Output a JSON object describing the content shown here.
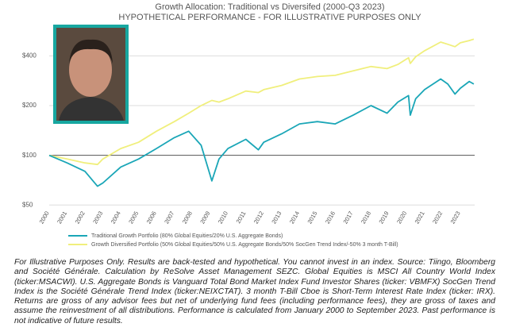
{
  "chart_data": {
    "type": "line",
    "title": "Growth Allocation: Traditional vs Diversifed (2000-Q3 2023)",
    "subtitle": "HYPOTHETICAL PERFORMANCE - FOR ILLUSTRATIVE PURPOSES ONLY",
    "x": [
      2000,
      2001,
      2002,
      2002.7,
      2003,
      2004,
      2005,
      2006,
      2007,
      2007.8,
      2008.5,
      2009.1,
      2009.5,
      2010,
      2011,
      2011.7,
      2012,
      2013,
      2014,
      2015,
      2016,
      2017,
      2018,
      2018.9,
      2019.5,
      2020.1,
      2020.2,
      2020.5,
      2021,
      2021.9,
      2022.3,
      2022.7,
      2023,
      2023.5,
      2023.75
    ],
    "series": [
      {
        "name": "Traditional Growth Portfolio (80% Global Equities/20% U.S. Aggregate Bonds)",
        "color": "#1aa6b7",
        "values": [
          100,
          90,
          80,
          65,
          68,
          85,
          95,
          110,
          128,
          140,
          115,
          70,
          95,
          110,
          125,
          108,
          120,
          135,
          155,
          160,
          155,
          175,
          200,
          180,
          210,
          230,
          175,
          220,
          250,
          290,
          270,
          235,
          255,
          280,
          270
        ]
      },
      {
        "name": "Growth Diversified Portfolio (50% Global Equities/50% U.S. Aggregate Bonds/50% SocGen Trend Index/-50% 3 month T-Bill)",
        "color": "#f0ef7c",
        "values": [
          100,
          95,
          90,
          88,
          95,
          110,
          120,
          140,
          160,
          180,
          200,
          215,
          210,
          220,
          245,
          240,
          250,
          265,
          290,
          300,
          305,
          325,
          345,
          335,
          355,
          390,
          360,
          395,
          430,
          485,
          470,
          455,
          480,
          495,
          505
        ]
      }
    ],
    "xlim": [
      2000,
      2023.8
    ],
    "xticks": [
      2000,
      2001,
      2002,
      2003,
      2004,
      2005,
      2006,
      2007,
      2008,
      2009,
      2010,
      2011,
      2012,
      2013,
      2014,
      2015,
      2016,
      2017,
      2018,
      2019,
      2020,
      2021,
      2022,
      2023
    ],
    "ylim": [
      48,
      560
    ],
    "yticks": [
      {
        "value": 50,
        "label": "$50"
      },
      {
        "value": 100,
        "label": "$100"
      },
      {
        "value": 200,
        "label": "$200"
      },
      {
        "value": 400,
        "label": "$400"
      }
    ],
    "log_y": true,
    "grid": true
  },
  "disclaimer": "For Illustrative Purposes Only. Results are back-tested and hypothetical. You cannot invest in an index. Source: Tiingo, Bloomberg and Société Générale. Calculation by ReSolve Asset Management SEZC. Global Equities is MSCI All Country World Index (ticker:MSACWI). U.S. Aggregate Bonds is Vanguard Total Bond Market Index Fund Investor Shares (ticker: VBMFX) SocGen Trend Index is the Société Générale Trend Index (ticker:NEIXCTAT). 3 month T-Bill Cboe is Short-Term Interest Rate Index (ticker: IRX). Returns are gross of any advisor fees but net of underlying fund fees (including performance fees), they are gross of taxes and assume the reinvestment of all distributions. Performance is calculated from January 2000 to September 2023. Past performance is not indicative of future results."
}
